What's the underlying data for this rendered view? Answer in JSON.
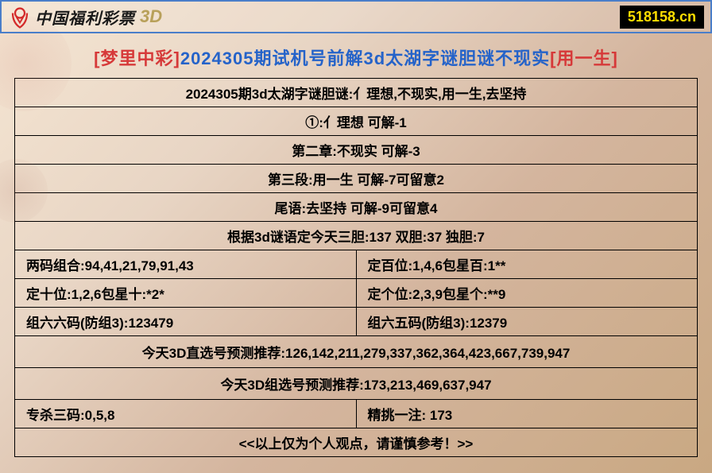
{
  "header": {
    "logo_text": "中国福利彩票",
    "logo_3d": "3D",
    "url": "518158.cn",
    "logo_color": "#d42a2a",
    "border_color": "#4a7ec9"
  },
  "title": {
    "prefix_red": "[梦里中彩]",
    "middle_blue": "2024305期试机号前解3d太湖字谜胆谜不现实",
    "suffix_red": "[用一生]"
  },
  "rows": [
    {
      "type": "single",
      "text": "2024305期3d太湖字谜胆谜:亻理想,不现实,用一生,去坚持"
    },
    {
      "type": "single",
      "text": "①:亻理想 可解-1"
    },
    {
      "type": "single",
      "text": "第二章:不现实 可解-3"
    },
    {
      "type": "single",
      "text": "第三段:用一生 可解-7可留意2"
    },
    {
      "type": "single",
      "text": "尾语:去坚持 可解-9可留意4"
    },
    {
      "type": "single",
      "text": "根据3d谜语定今天三胆:137 双胆:37 独胆:7"
    },
    {
      "type": "double",
      "left": "两码组合:94,41,21,79,91,43",
      "right": "定百位:1,4,6包星百:1**"
    },
    {
      "type": "double",
      "left": "定十位:1,2,6包星十:*2*",
      "right": "定个位:2,3,9包星个:**9"
    },
    {
      "type": "double",
      "left": "组六六码(防组3):123479",
      "right": "组六五码(防组3):12379"
    },
    {
      "type": "single",
      "text": "今天3D直选号预测推荐:126,142,211,279,337,362,364,423,667,739,947"
    },
    {
      "type": "single",
      "text": "今天3D组选号预测推荐:173,213,469,637,947"
    },
    {
      "type": "double",
      "left": "专杀三码:0,5,8",
      "right": "精挑一注: 173"
    },
    {
      "type": "single",
      "text": "<<以上仅为个人观点，请谨慎参考！>>"
    }
  ],
  "style": {
    "text_color": "#000000",
    "title_red": "#d63939",
    "title_blue": "#2563c9",
    "badge_bg": "#000000",
    "badge_fg": "#ffde00"
  }
}
